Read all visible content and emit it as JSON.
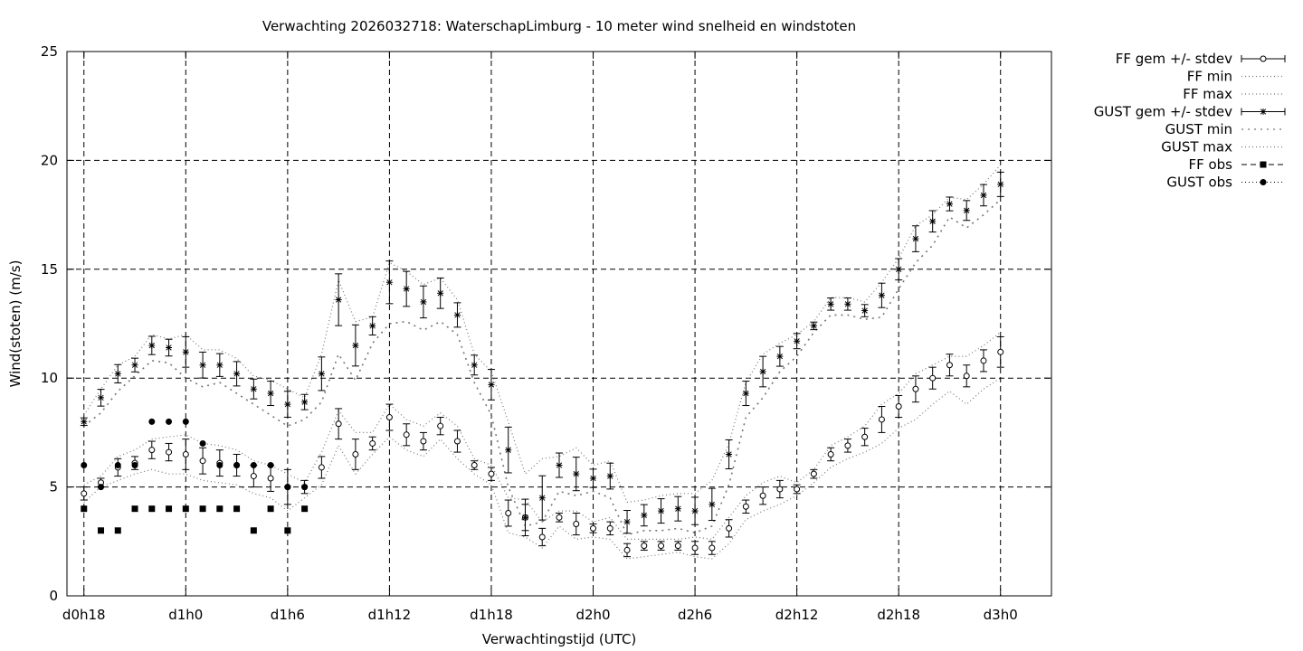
{
  "chart_data": {
    "type": "line",
    "title": "Verwachting 2026032718: WaterschapLimburg - 10 meter wind snelheid en windstoten",
    "xlabel": "Verwachtingstijd (UTC)",
    "ylabel": "Wind(stoten) (m/s)",
    "ylim": [
      0,
      25
    ],
    "xlim": [
      17,
      75
    ],
    "yticks": [
      0,
      5,
      10,
      15,
      20,
      25
    ],
    "xticks": [
      {
        "x": 18,
        "label": "d0h18"
      },
      {
        "x": 24,
        "label": "d1h0"
      },
      {
        "x": 30,
        "label": "d1h6"
      },
      {
        "x": 36,
        "label": "d1h12"
      },
      {
        "x": 42,
        "label": "d1h18"
      },
      {
        "x": 48,
        "label": "d2h0"
      },
      {
        "x": 54,
        "label": "d2h6"
      },
      {
        "x": 60,
        "label": "d2h12"
      },
      {
        "x": 66,
        "label": "d2h18"
      },
      {
        "x": 72,
        "label": "d3h0"
      }
    ],
    "grid": true,
    "legend_position": "outside-top-right",
    "x_start": 18,
    "series": [
      {
        "name": "FF gem +/- stdev",
        "marker": "open-circle",
        "values": [
          4.7,
          5.2,
          5.9,
          6.1,
          6.7,
          6.6,
          6.5,
          6.2,
          6.1,
          6.0,
          5.5,
          5.4,
          5.0,
          5.0,
          5.9,
          7.9,
          6.5,
          7.0,
          8.2,
          7.4,
          7.1,
          7.8,
          7.1,
          6.0,
          5.6,
          3.8,
          3.6,
          2.7,
          3.6,
          3.3,
          3.1,
          3.1,
          2.1,
          2.3,
          2.3,
          2.3,
          2.2,
          2.2,
          3.1,
          4.1,
          4.6,
          4.9,
          4.9,
          5.6,
          6.5,
          6.9,
          7.3,
          8.1,
          8.7,
          9.5,
          10.0,
          10.6,
          10.1,
          10.8,
          11.2
        ],
        "stdev": [
          0.3,
          0.2,
          0.4,
          0.3,
          0.4,
          0.4,
          0.7,
          0.6,
          0.6,
          0.5,
          0.5,
          0.6,
          0.8,
          0.3,
          0.5,
          0.7,
          0.7,
          0.3,
          0.6,
          0.5,
          0.4,
          0.4,
          0.5,
          0.2,
          0.3,
          0.6,
          0.6,
          0.4,
          0.2,
          0.5,
          0.2,
          0.3,
          0.3,
          0.2,
          0.2,
          0.2,
          0.3,
          0.3,
          0.4,
          0.3,
          0.4,
          0.4,
          0.2,
          0.2,
          0.3,
          0.3,
          0.4,
          0.6,
          0.5,
          0.6,
          0.5,
          0.5,
          0.5,
          0.5,
          0.7
        ]
      },
      {
        "name": "FF min",
        "values": [
          4.3,
          5.0,
          5.3,
          5.6,
          5.8,
          5.6,
          5.6,
          5.3,
          5.2,
          5.1,
          4.7,
          4.5,
          3.9,
          4.5,
          5.1,
          6.9,
          5.6,
          6.5,
          7.3,
          6.7,
          6.4,
          7.2,
          6.3,
          5.6,
          5.1,
          2.9,
          2.7,
          2.2,
          3.2,
          2.6,
          2.7,
          2.6,
          1.7,
          1.8,
          1.9,
          2.0,
          1.8,
          1.7,
          2.4,
          3.5,
          3.9,
          4.2,
          4.6,
          5.2,
          5.9,
          6.3,
          6.6,
          7.0,
          7.7,
          8.1,
          8.8,
          9.4,
          8.8,
          9.5,
          10.0
        ]
      },
      {
        "name": "FF max",
        "values": [
          5.1,
          5.5,
          6.4,
          6.7,
          7.2,
          7.3,
          7.4,
          7.0,
          6.9,
          6.7,
          6.2,
          6.0,
          5.6,
          5.2,
          6.6,
          8.5,
          7.5,
          7.5,
          8.8,
          8.1,
          7.8,
          8.4,
          7.8,
          6.3,
          6.0,
          4.5,
          4.4,
          3.4,
          3.9,
          3.9,
          3.4,
          3.6,
          2.6,
          2.6,
          2.6,
          2.6,
          2.7,
          2.6,
          3.6,
          4.6,
          5.2,
          5.5,
          5.2,
          5.8,
          6.9,
          7.3,
          7.8,
          8.8,
          9.3,
          10.2,
          10.6,
          11.0,
          11.0,
          11.5,
          12.1
        ]
      },
      {
        "name": "GUST gem +/- stdev",
        "marker": "star",
        "values": [
          8.0,
          9.1,
          10.2,
          10.6,
          11.5,
          11.4,
          11.2,
          10.6,
          10.6,
          10.2,
          9.5,
          9.3,
          8.8,
          8.9,
          10.2,
          13.6,
          11.5,
          12.4,
          14.4,
          14.1,
          13.5,
          13.9,
          12.9,
          10.6,
          9.7,
          6.7,
          3.6,
          4.5,
          6.0,
          5.6,
          5.4,
          5.5,
          3.4,
          3.7,
          3.9,
          4.0,
          3.9,
          4.2,
          6.5,
          9.3,
          10.3,
          11.0,
          11.7,
          12.4,
          13.4,
          13.4,
          13.1,
          13.8,
          15.0,
          16.4,
          17.2,
          18.0,
          17.7,
          18.4,
          18.9
        ]
      },
      {
        "name": "GUST min",
        "values": [
          7.8,
          8.4,
          9.4,
          10.1,
          10.8,
          10.7,
          10.0,
          9.6,
          9.8,
          9.3,
          8.8,
          8.3,
          7.8,
          8.1,
          8.9,
          11.1,
          9.9,
          11.6,
          12.5,
          12.6,
          12.2,
          12.6,
          12.0,
          9.8,
          8.3,
          5.0,
          3.2,
          3.4,
          4.8,
          4.6,
          4.8,
          4.5,
          2.8,
          3.0,
          3.0,
          3.1,
          2.9,
          3.2,
          5.1,
          8.2,
          9.1,
          10.3,
          11.0,
          12.1,
          12.9,
          12.9,
          12.7,
          12.8,
          14.1,
          15.3,
          16.1,
          17.4,
          16.9,
          17.5,
          18.2
        ]
      },
      {
        "name": "GUST max",
        "values": [
          8.3,
          9.5,
          10.6,
          11.0,
          12.0,
          11.8,
          12.0,
          11.3,
          11.3,
          10.9,
          10.1,
          9.9,
          9.5,
          9.1,
          11.1,
          14.5,
          12.6,
          12.8,
          15.3,
          14.9,
          14.3,
          14.6,
          13.6,
          11.1,
          10.3,
          8.0,
          5.6,
          6.3,
          6.4,
          6.8,
          6.0,
          6.2,
          4.3,
          4.4,
          4.6,
          4.7,
          4.7,
          5.3,
          7.0,
          9.8,
          11.1,
          11.6,
          12.0,
          12.6,
          13.7,
          13.7,
          13.5,
          14.4,
          15.5,
          17.0,
          17.5,
          18.3,
          18.2,
          18.9,
          19.8
        ]
      },
      {
        "name": "FF obs",
        "marker": "filled-square",
        "values": [
          4,
          3,
          3,
          4,
          4,
          4,
          4,
          4,
          4,
          4,
          3,
          4,
          3,
          4
        ]
      },
      {
        "name": "GUST obs",
        "marker": "filled-circle",
        "values": [
          6,
          5,
          6,
          6,
          8,
          8,
          8,
          7,
          6,
          6,
          6,
          6,
          5,
          5
        ]
      }
    ]
  }
}
